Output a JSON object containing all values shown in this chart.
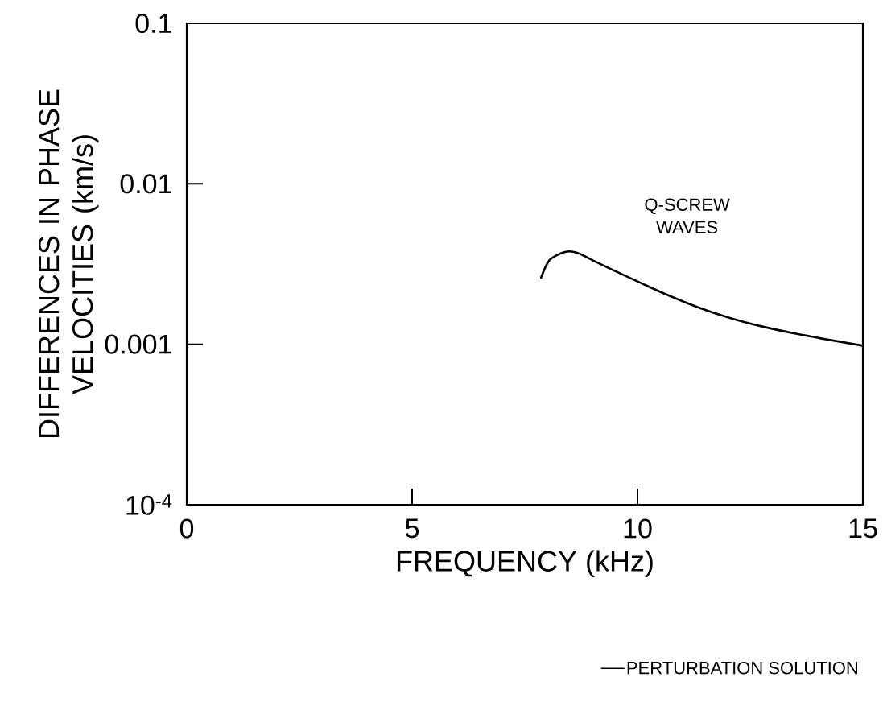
{
  "chart_data": {
    "type": "line",
    "xlabel": "FREQUENCY (kHz)",
    "ylabel": "DIFFERENCES IN PHASE VELOCITIES (km/s)",
    "log": "y",
    "xlim": [
      0,
      15
    ],
    "ylim": [
      0.0001,
      0.1
    ],
    "xticks": [
      0,
      5,
      10,
      15
    ],
    "yticks": [
      {
        "value": 0.0001,
        "label": "10$^{-4}$"
      },
      0.001,
      0.01,
      0.1
    ],
    "grid": false,
    "legend": "bottom right",
    "marker": "none",
    "line_style": "solid",
    "annotations": [
      "Q-SCREW WAVES"
    ],
    "series": [
      {
        "name": "PERTURBATION SOLUTION",
        "color": "#000000",
        "x": [
          7.86,
          8.05,
          8.39,
          8.66,
          9.07,
          9.55,
          10.09,
          10.68,
          11.34,
          12.05,
          12.77,
          13.54,
          14.3,
          15
        ],
        "values": [
          0.0026,
          0.00335,
          0.00376,
          0.00372,
          0.00327,
          0.00282,
          0.0024,
          0.00202,
          0.0017,
          0.00146,
          0.00129,
          0.00116,
          0.00106,
          0.00098
        ]
      }
    ]
  }
}
